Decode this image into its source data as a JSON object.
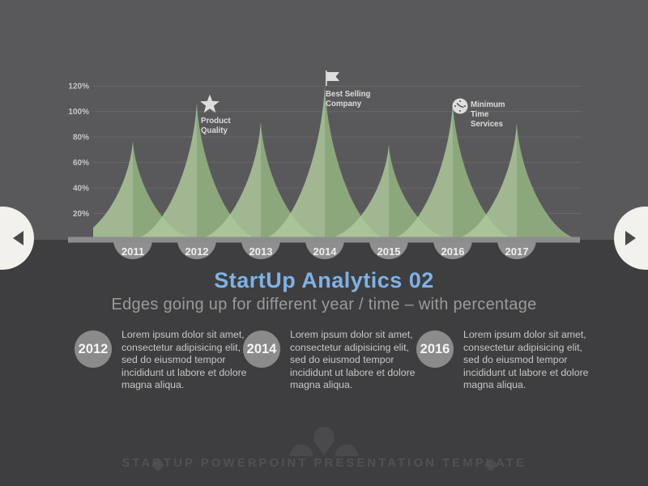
{
  "title": "StartUp Analytics 02",
  "subtitle": "Edges going up for different year / time – with percentage",
  "chart_data": {
    "type": "area",
    "title": "",
    "xlabel": "",
    "ylabel": "",
    "unit": "%",
    "categories": [
      "2011",
      "2012",
      "2013",
      "2014",
      "2015",
      "2016",
      "2017"
    ],
    "values": [
      77,
      107,
      92,
      120,
      74,
      107,
      91
    ],
    "ylim": [
      0,
      130
    ],
    "ytick_values": [
      20,
      40,
      60,
      80,
      100,
      120
    ],
    "ytick_labels": [
      "20%",
      "40%",
      "60%",
      "80%",
      "100%",
      "120%"
    ],
    "grid": true,
    "legend": false,
    "annotations": [
      {
        "category": "2012",
        "icon": "star-icon",
        "lines": [
          "Product",
          "Quality"
        ]
      },
      {
        "category": "2014",
        "icon": "flag-icon",
        "lines": [
          "Best Selling",
          "Company"
        ]
      },
      {
        "category": "2016",
        "icon": "clock-icon",
        "lines": [
          "Minimum",
          "Time",
          "Services"
        ]
      }
    ]
  },
  "nav": {
    "prev_icon": "arrow-left-icon",
    "next_icon": "arrow-right-icon"
  },
  "info_blocks": [
    {
      "year": "2012",
      "text": "Lorem ipsum dolor sit amet, consectetur adipisicing elit, sed do eiusmod tempor incididunt ut labore et dolore magna aliqua."
    },
    {
      "year": "2014",
      "text": "Lorem ipsum dolor sit amet, consectetur adipisicing elit, sed do eiusmod tempor incididunt ut labore et dolore magna aliqua."
    },
    {
      "year": "2016",
      "text": "Lorem ipsum dolor sit amet, consectetur adipisicing elit, sed do eiusmod tempor incididunt ut labore et dolore magna aliqua."
    }
  ],
  "footer": {
    "text": "STARTUP POWERPOINT PRESENTATION TEMPLATE"
  },
  "colors": {
    "top_bg": "#59595b",
    "bottom_bg": "#3e3e40",
    "accent_blue": "#7fb2e5",
    "subtitle_gray": "#9a9a9a",
    "spike_left": "#b0cc9d",
    "spike_right": "#97b884",
    "axis_bar": "#8d8d8f",
    "year_circle": "#8f8f90",
    "year_text": "#efefef",
    "tick_text": "#c6c6c6",
    "annotation_text": "#dcdcdc",
    "icon_gray": "#dedede",
    "info_circle": "#8b8b8c",
    "info_text": "#c7c7c7",
    "arrow_circle": "#f3f1ed",
    "footer_text": "#515154"
  }
}
